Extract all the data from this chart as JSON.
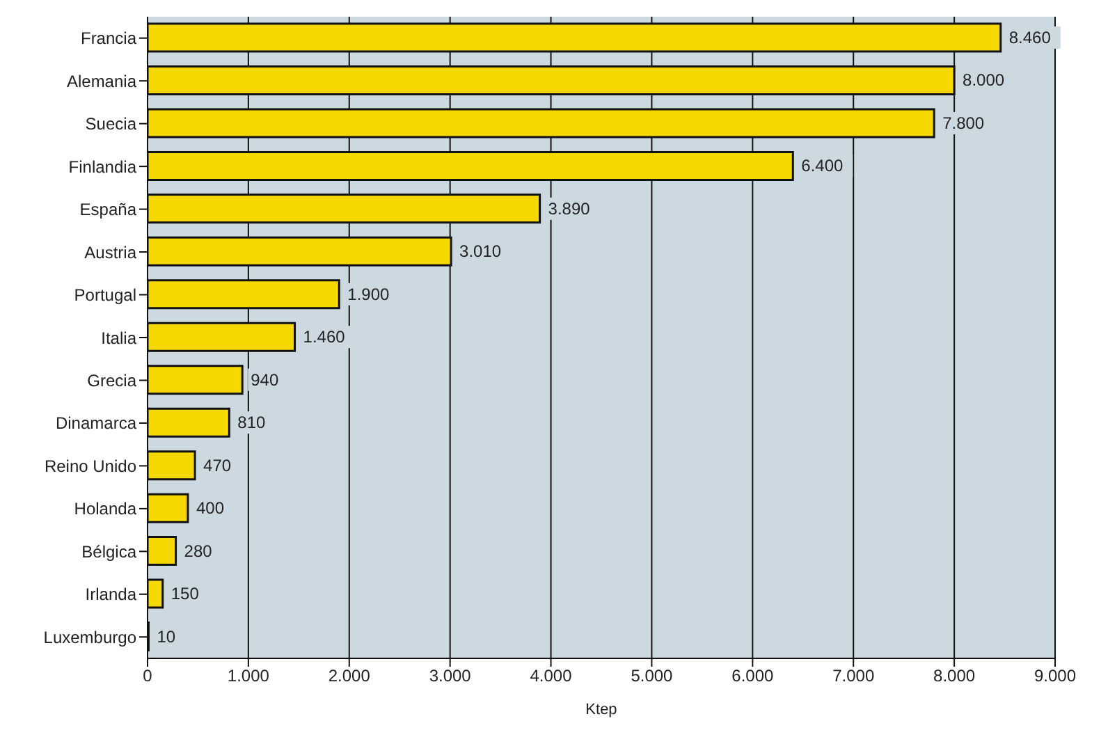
{
  "chart_data": {
    "type": "bar",
    "orientation": "horizontal",
    "xlabel": "Ktep",
    "categories": [
      "Francia",
      "Alemania",
      "Suecia",
      "Finlandia",
      "España",
      "Austria",
      "Portugal",
      "Italia",
      "Grecia",
      "Dinamarca",
      "Reino Unido",
      "Holanda",
      "Bélgica",
      "Irlanda",
      "Luxemburgo"
    ],
    "values": [
      8460,
      8000,
      7800,
      6400,
      3890,
      3010,
      1900,
      1460,
      940,
      810,
      470,
      400,
      280,
      150,
      10
    ],
    "value_labels": [
      "8.460",
      "8.000",
      "7.800",
      "6.400",
      "3.890",
      "3.010",
      "1.900",
      "1.460",
      "940",
      "810",
      "470",
      "400",
      "280",
      "150",
      "10"
    ],
    "color": "#f5d800",
    "xlim": [
      0,
      9000
    ],
    "xticks": [
      0,
      {
        "value": 1000,
        "label": "1.000"
      },
      {
        "value": 2000,
        "label": "2.000"
      },
      {
        "value": 3000,
        "label": "3.000"
      },
      {
        "value": 4000,
        "label": "4.000"
      },
      {
        "value": 5000,
        "label": "5.000"
      },
      {
        "value": 6000,
        "label": "6.000"
      },
      {
        "value": 7000,
        "label": "7.000"
      },
      {
        "value": 8000,
        "label": "8.000"
      },
      {
        "value": 9000,
        "label": "9.000"
      }
    ],
    "grid": "x"
  }
}
